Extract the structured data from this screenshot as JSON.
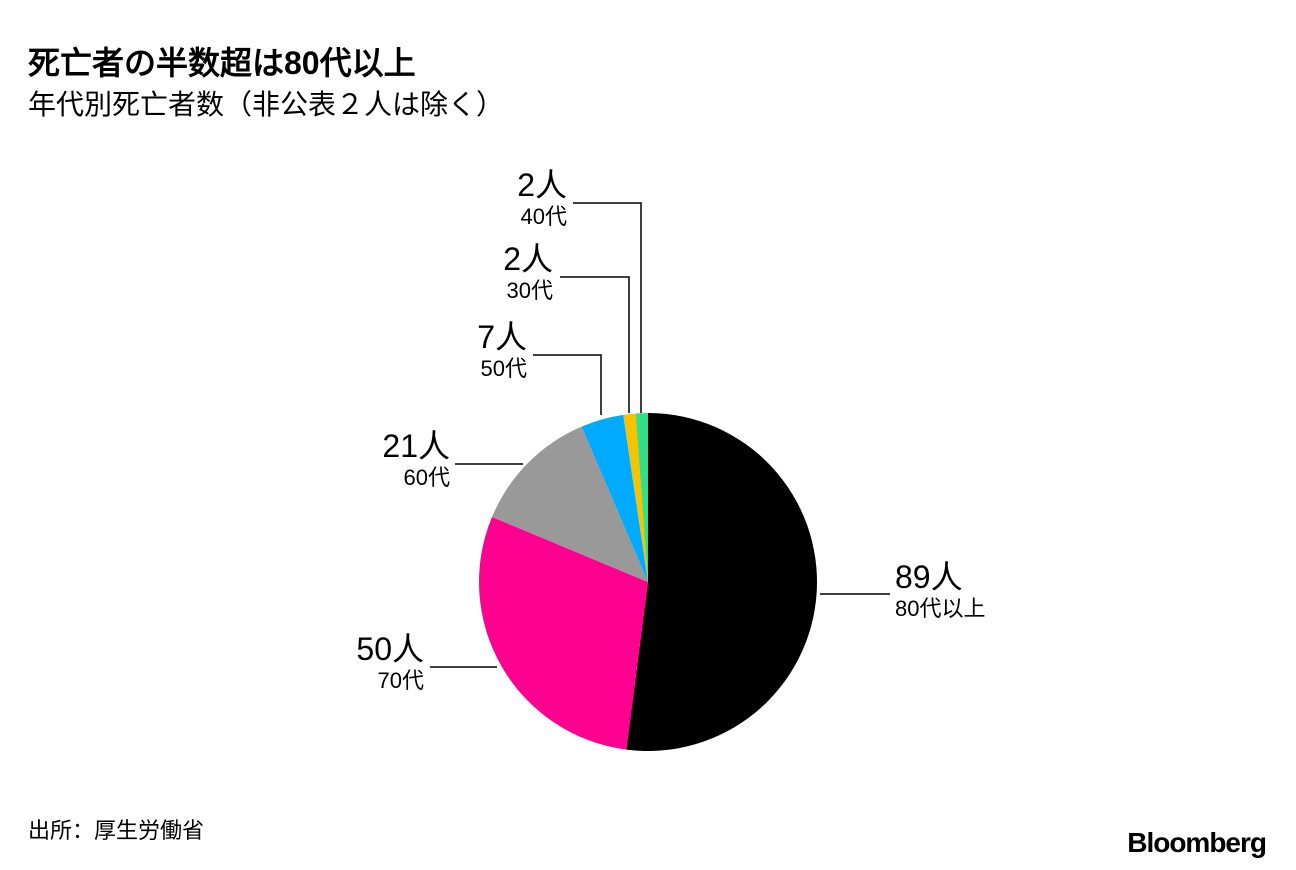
{
  "chart_data": {
    "type": "pie",
    "title": "死亡者の半数超は80代以上",
    "subtitle": "年代別死亡者数（非公表２人は除く）",
    "categories": [
      "80代以上",
      "70代",
      "60代",
      "50代",
      "30代",
      "40代"
    ],
    "values": [
      89,
      50,
      21,
      7,
      2,
      2
    ],
    "value_labels": [
      "89人",
      "50人",
      "21人",
      "7人",
      "2人",
      "2人"
    ],
    "colors": [
      "#000000",
      "#ff0090",
      "#999999",
      "#00aaff",
      "#f5c400",
      "#33e08a"
    ],
    "source": "出所：厚生労働省",
    "logo": "Bloomberg"
  }
}
